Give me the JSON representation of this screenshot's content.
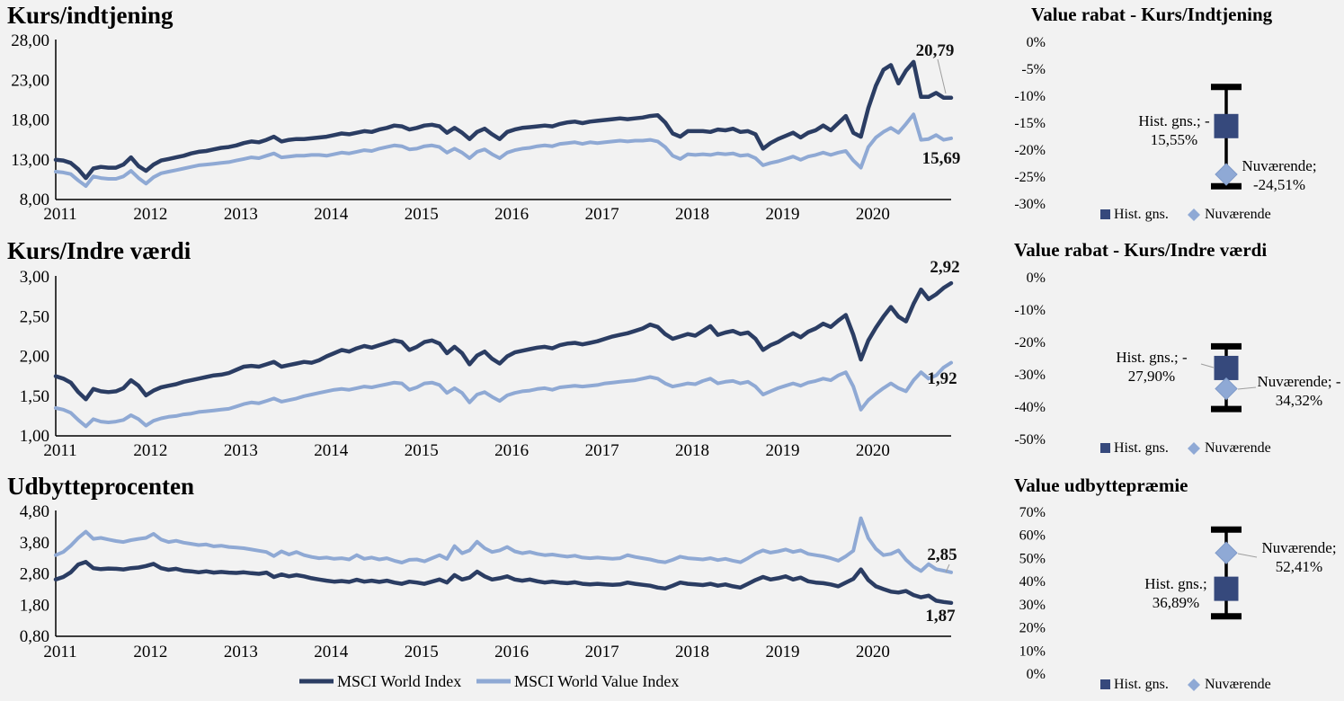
{
  "colors": {
    "dark_series": "#2B3D63",
    "light_series": "#8FA9D4",
    "hist_marker": "#36497C",
    "current_marker": "#8FA9D5",
    "current_marker_edge": "#7E99C8",
    "whisker": "#000000",
    "leader": "#9E9E9E",
    "background": "#F2F2F2"
  },
  "legend": {
    "series": [
      {
        "label": "MSCI World Index"
      },
      {
        "label": "MSCI World Value Index"
      }
    ]
  },
  "chart_data": [
    {
      "type": "line",
      "title": "Kurs/indtjening",
      "y_ticks": [
        "28,00",
        "23,00",
        "18,00",
        "13,00",
        "8,00"
      ],
      "y_min": 8,
      "y_max": 28,
      "x_ticks": [
        "2011",
        "2012",
        "2013",
        "2014",
        "2015",
        "2016",
        "2017",
        "2018",
        "2019",
        "2020"
      ],
      "grid": false,
      "series": [
        {
          "name": "MSCI World Index",
          "color_key": "dark_series",
          "end_label": "20,79",
          "values": [
            13.0,
            12.9,
            12.6,
            11.8,
            10.7,
            11.9,
            12.1,
            12.0,
            12.0,
            12.4,
            13.3,
            12.2,
            11.6,
            12.4,
            12.9,
            13.1,
            13.3,
            13.5,
            13.8,
            14.0,
            14.1,
            14.3,
            14.5,
            14.6,
            14.8,
            15.1,
            15.3,
            15.2,
            15.5,
            15.9,
            15.3,
            15.5,
            15.6,
            15.6,
            15.7,
            15.8,
            15.9,
            16.1,
            16.3,
            16.2,
            16.4,
            16.6,
            16.5,
            16.8,
            17.0,
            17.3,
            17.2,
            16.8,
            17.0,
            17.3,
            17.4,
            17.2,
            16.4,
            17.0,
            16.4,
            15.6,
            16.5,
            16.9,
            16.2,
            15.6,
            16.5,
            16.8,
            17.0,
            17.1,
            17.2,
            17.3,
            17.2,
            17.5,
            17.7,
            17.8,
            17.6,
            17.8,
            17.9,
            18.0,
            18.1,
            18.2,
            18.1,
            18.2,
            18.3,
            18.5,
            18.6,
            17.7,
            16.3,
            15.9,
            16.6,
            16.6,
            16.6,
            16.5,
            16.8,
            16.7,
            16.9,
            16.5,
            16.6,
            16.2,
            14.4,
            15.1,
            15.6,
            16.0,
            16.4,
            15.8,
            16.4,
            16.7,
            17.3,
            16.7,
            17.6,
            18.5,
            16.4,
            15.9,
            19.5,
            22.3,
            24.3,
            24.9,
            22.6,
            24.2,
            25.3,
            20.9,
            20.9,
            21.4,
            20.8,
            20.79
          ]
        },
        {
          "name": "MSCI World Value Index",
          "color_key": "light_series",
          "end_label": "15,69",
          "values": [
            11.5,
            11.4,
            11.2,
            10.4,
            9.7,
            10.9,
            10.7,
            10.6,
            10.6,
            10.9,
            11.6,
            10.7,
            10.0,
            10.8,
            11.3,
            11.5,
            11.7,
            11.9,
            12.1,
            12.3,
            12.4,
            12.5,
            12.6,
            12.7,
            12.9,
            13.1,
            13.3,
            13.2,
            13.5,
            13.8,
            13.3,
            13.4,
            13.5,
            13.5,
            13.6,
            13.6,
            13.5,
            13.7,
            13.9,
            13.8,
            14.0,
            14.2,
            14.1,
            14.4,
            14.6,
            14.8,
            14.7,
            14.3,
            14.4,
            14.7,
            14.8,
            14.6,
            13.9,
            14.4,
            13.9,
            13.2,
            14.0,
            14.3,
            13.7,
            13.2,
            13.9,
            14.2,
            14.4,
            14.5,
            14.7,
            14.8,
            14.7,
            15.0,
            15.1,
            15.2,
            15.0,
            15.2,
            15.1,
            15.2,
            15.3,
            15.4,
            15.3,
            15.4,
            15.4,
            15.5,
            15.3,
            14.6,
            13.5,
            13.1,
            13.7,
            13.6,
            13.7,
            13.6,
            13.8,
            13.7,
            13.8,
            13.5,
            13.6,
            13.2,
            12.3,
            12.6,
            12.8,
            13.1,
            13.4,
            13.0,
            13.4,
            13.6,
            13.9,
            13.6,
            13.9,
            14.1,
            12.9,
            12.0,
            14.6,
            15.8,
            16.5,
            17.0,
            16.4,
            17.5,
            18.7,
            15.5,
            15.6,
            16.1,
            15.5,
            15.69
          ]
        }
      ]
    },
    {
      "type": "line",
      "title": "Kurs/Indre værdi",
      "y_ticks": [
        "3,00",
        "2,50",
        "2,00",
        "1,50",
        "1,00"
      ],
      "y_min": 1,
      "y_max": 3,
      "x_ticks": [
        "2011",
        "2012",
        "2013",
        "2014",
        "2015",
        "2016",
        "2017",
        "2018",
        "2019",
        "2020"
      ],
      "grid": false,
      "series": [
        {
          "name": "MSCI World Index",
          "color_key": "dark_series",
          "end_label": "2,92",
          "values": [
            1.75,
            1.72,
            1.67,
            1.55,
            1.46,
            1.59,
            1.56,
            1.55,
            1.56,
            1.6,
            1.7,
            1.63,
            1.51,
            1.57,
            1.61,
            1.63,
            1.65,
            1.68,
            1.7,
            1.72,
            1.74,
            1.76,
            1.77,
            1.79,
            1.83,
            1.87,
            1.88,
            1.87,
            1.9,
            1.93,
            1.87,
            1.89,
            1.91,
            1.93,
            1.92,
            1.95,
            2.0,
            2.04,
            2.08,
            2.06,
            2.1,
            2.13,
            2.11,
            2.14,
            2.17,
            2.2,
            2.18,
            2.08,
            2.12,
            2.18,
            2.2,
            2.16,
            2.04,
            2.12,
            2.04,
            1.9,
            2.01,
            2.06,
            1.97,
            1.91,
            2.0,
            2.05,
            2.07,
            2.09,
            2.11,
            2.12,
            2.1,
            2.14,
            2.16,
            2.17,
            2.15,
            2.17,
            2.19,
            2.22,
            2.25,
            2.27,
            2.29,
            2.32,
            2.35,
            2.4,
            2.37,
            2.28,
            2.22,
            2.25,
            2.28,
            2.26,
            2.32,
            2.38,
            2.27,
            2.3,
            2.32,
            2.28,
            2.3,
            2.22,
            2.08,
            2.14,
            2.18,
            2.24,
            2.29,
            2.24,
            2.31,
            2.35,
            2.41,
            2.37,
            2.45,
            2.52,
            2.27,
            1.96,
            2.2,
            2.36,
            2.5,
            2.62,
            2.5,
            2.44,
            2.66,
            2.84,
            2.72,
            2.78,
            2.86,
            2.92
          ]
        },
        {
          "name": "MSCI World Value Index",
          "color_key": "light_series",
          "end_label": "1,92",
          "values": [
            1.35,
            1.33,
            1.29,
            1.2,
            1.12,
            1.21,
            1.18,
            1.17,
            1.18,
            1.2,
            1.26,
            1.21,
            1.13,
            1.19,
            1.22,
            1.24,
            1.25,
            1.27,
            1.28,
            1.3,
            1.31,
            1.32,
            1.33,
            1.34,
            1.37,
            1.4,
            1.42,
            1.41,
            1.44,
            1.47,
            1.43,
            1.45,
            1.47,
            1.5,
            1.52,
            1.54,
            1.56,
            1.58,
            1.59,
            1.58,
            1.6,
            1.62,
            1.61,
            1.63,
            1.65,
            1.67,
            1.66,
            1.58,
            1.61,
            1.66,
            1.67,
            1.64,
            1.54,
            1.6,
            1.54,
            1.42,
            1.52,
            1.55,
            1.49,
            1.44,
            1.51,
            1.54,
            1.56,
            1.57,
            1.59,
            1.6,
            1.58,
            1.61,
            1.62,
            1.63,
            1.62,
            1.63,
            1.64,
            1.66,
            1.67,
            1.68,
            1.69,
            1.7,
            1.72,
            1.74,
            1.72,
            1.66,
            1.62,
            1.64,
            1.66,
            1.65,
            1.69,
            1.72,
            1.66,
            1.68,
            1.69,
            1.66,
            1.68,
            1.62,
            1.52,
            1.56,
            1.6,
            1.63,
            1.66,
            1.63,
            1.67,
            1.69,
            1.72,
            1.7,
            1.76,
            1.8,
            1.62,
            1.33,
            1.45,
            1.53,
            1.6,
            1.66,
            1.6,
            1.56,
            1.7,
            1.8,
            1.72,
            1.76,
            1.86,
            1.92
          ]
        }
      ]
    },
    {
      "type": "line",
      "title": "Udbytteprocenten",
      "y_ticks": [
        "4,80",
        "3,80",
        "2,80",
        "1,80",
        "0,80"
      ],
      "y_min": 0.8,
      "y_max": 4.8,
      "x_ticks": [
        "2011",
        "2012",
        "2013",
        "2014",
        "2015",
        "2016",
        "2017",
        "2018",
        "2019",
        "2020"
      ],
      "grid": false,
      "series": [
        {
          "name": "MSCI World Index",
          "color_key": "dark_series",
          "end_label": "1,87",
          "values": [
            2.62,
            2.7,
            2.85,
            3.1,
            3.18,
            2.98,
            2.95,
            2.97,
            2.96,
            2.94,
            2.98,
            3.0,
            3.05,
            3.12,
            2.98,
            2.93,
            2.96,
            2.9,
            2.88,
            2.85,
            2.88,
            2.84,
            2.86,
            2.84,
            2.83,
            2.85,
            2.82,
            2.8,
            2.84,
            2.7,
            2.78,
            2.72,
            2.76,
            2.72,
            2.66,
            2.62,
            2.58,
            2.55,
            2.57,
            2.54,
            2.61,
            2.55,
            2.58,
            2.54,
            2.58,
            2.52,
            2.48,
            2.55,
            2.52,
            2.48,
            2.55,
            2.62,
            2.52,
            2.76,
            2.62,
            2.68,
            2.87,
            2.72,
            2.62,
            2.66,
            2.72,
            2.62,
            2.58,
            2.62,
            2.56,
            2.52,
            2.55,
            2.52,
            2.5,
            2.53,
            2.48,
            2.46,
            2.48,
            2.46,
            2.45,
            2.46,
            2.52,
            2.48,
            2.45,
            2.42,
            2.36,
            2.33,
            2.42,
            2.52,
            2.48,
            2.46,
            2.44,
            2.48,
            2.42,
            2.46,
            2.4,
            2.36,
            2.48,
            2.6,
            2.7,
            2.62,
            2.66,
            2.72,
            2.62,
            2.68,
            2.56,
            2.52,
            2.5,
            2.46,
            2.4,
            2.52,
            2.64,
            2.94,
            2.6,
            2.4,
            2.31,
            2.23,
            2.2,
            2.25,
            2.12,
            2.05,
            2.1,
            1.94,
            1.9,
            1.87
          ]
        },
        {
          "name": "MSCI World Value Index",
          "color_key": "light_series",
          "end_label": "2,85",
          "values": [
            3.4,
            3.5,
            3.7,
            3.95,
            4.15,
            3.92,
            3.95,
            3.9,
            3.85,
            3.82,
            3.88,
            3.92,
            3.95,
            4.08,
            3.9,
            3.82,
            3.86,
            3.8,
            3.76,
            3.72,
            3.74,
            3.68,
            3.7,
            3.66,
            3.64,
            3.62,
            3.58,
            3.54,
            3.5,
            3.37,
            3.52,
            3.42,
            3.5,
            3.4,
            3.34,
            3.3,
            3.32,
            3.28,
            3.3,
            3.26,
            3.4,
            3.28,
            3.32,
            3.26,
            3.3,
            3.22,
            3.16,
            3.25,
            3.26,
            3.2,
            3.3,
            3.4,
            3.28,
            3.69,
            3.46,
            3.55,
            3.83,
            3.62,
            3.5,
            3.55,
            3.66,
            3.52,
            3.46,
            3.5,
            3.44,
            3.4,
            3.42,
            3.38,
            3.35,
            3.38,
            3.32,
            3.3,
            3.32,
            3.3,
            3.28,
            3.3,
            3.4,
            3.34,
            3.3,
            3.26,
            3.2,
            3.17,
            3.25,
            3.35,
            3.3,
            3.28,
            3.26,
            3.3,
            3.24,
            3.28,
            3.22,
            3.17,
            3.3,
            3.45,
            3.55,
            3.48,
            3.52,
            3.58,
            3.5,
            3.55,
            3.44,
            3.4,
            3.36,
            3.3,
            3.22,
            3.36,
            3.54,
            4.58,
            3.94,
            3.6,
            3.4,
            3.44,
            3.55,
            3.25,
            3.03,
            2.89,
            3.11,
            2.95,
            2.9,
            2.85
          ]
        }
      ]
    },
    {
      "type": "errorbar",
      "title": "Value rabat - Kurs/Indtjening",
      "y_ticks": [
        "0%",
        "-5%",
        "-10%",
        "-15%",
        "-20%",
        "-25%",
        "-30%"
      ],
      "whisker": {
        "top": -8.3,
        "bottom": -26.7
      },
      "points": [
        {
          "name": "Hist. gns.",
          "value": -15.55,
          "label": [
            "Hist. gns.; -",
            "15,55%"
          ]
        },
        {
          "name": "Nuværende",
          "value": -24.51,
          "label": [
            "Nuværende;",
            "-24,51%"
          ]
        }
      ],
      "legend": [
        "Hist. gns.",
        "Nuværende"
      ]
    },
    {
      "type": "errorbar",
      "title": "Value rabat - Kurs/Indre værdi",
      "y_ticks": [
        "0%",
        "-10%",
        "-20%",
        "-30%",
        "-40%",
        "-50%"
      ],
      "whisker": {
        "top": -21.2,
        "bottom": -40.6
      },
      "points": [
        {
          "name": "Hist. gns.",
          "value": -27.9,
          "label": [
            "Hist. gns.; -",
            "27,90%"
          ]
        },
        {
          "name": "Nuværende",
          "value": -34.32,
          "label": [
            "Nuværende; -",
            "34,32%"
          ]
        }
      ],
      "legend": [
        "Hist. gns.",
        "Nuværende"
      ]
    },
    {
      "type": "errorbar",
      "title": "Value udbyttepræmie",
      "y_ticks": [
        "70%",
        "60%",
        "50%",
        "40%",
        "30%",
        "20%",
        "10%",
        "0%"
      ],
      "whisker": {
        "top": 62.5,
        "bottom": 25.0
      },
      "points": [
        {
          "name": "Hist. gns.",
          "value": 36.89,
          "label": [
            "Hist. gns.;",
            "36,89%"
          ]
        },
        {
          "name": "Nuværende",
          "value": 52.41,
          "label": [
            "Nuværende;",
            "52,41%"
          ]
        }
      ],
      "legend": [
        "Hist. gns.",
        "Nuværende"
      ]
    }
  ]
}
